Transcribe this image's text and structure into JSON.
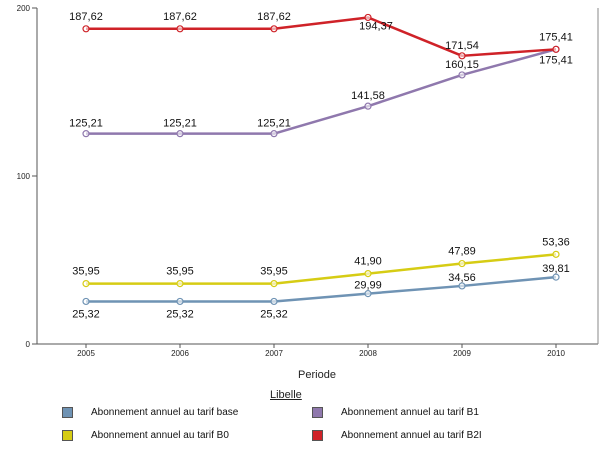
{
  "chart_data": {
    "type": "line",
    "x": [
      "2005",
      "2006",
      "2007",
      "2008",
      "2009",
      "2010"
    ],
    "xlabel": "Periode",
    "ylabel": "",
    "ylim": [
      0,
      200
    ],
    "yticks": [
      "0",
      "100",
      "200"
    ],
    "grid": false,
    "legend_title": "Libelle",
    "legend_position": "bottom",
    "series": [
      {
        "name": "Abonnement annuel au tarif base",
        "color": "#6f93b4",
        "values": [
          25.32,
          25.32,
          25.32,
          29.99,
          34.56,
          39.81
        ],
        "labels": [
          "25,32",
          "25,32",
          "25,32",
          "29,99",
          "34,56",
          "39,81"
        ]
      },
      {
        "name": "Abonnement annuel au tarif B1",
        "color": "#8f78ad",
        "values": [
          125.21,
          125.21,
          125.21,
          141.58,
          160.15,
          175.41
        ],
        "labels": [
          "125,21",
          "125,21",
          "125,21",
          "141,58",
          "160,15",
          "175,41"
        ]
      },
      {
        "name": "Abonnement annuel au tarif B0",
        "color": "#d6cc14",
        "values": [
          35.95,
          35.95,
          35.95,
          41.9,
          47.89,
          53.36
        ],
        "labels": [
          "35,95",
          "35,95",
          "35,95",
          "41,90",
          "47,89",
          "53,36"
        ]
      },
      {
        "name": "Abonnement annuel au tarif B2I",
        "color": "#cf2228",
        "values": [
          187.62,
          187.62,
          187.62,
          194.37,
          171.54,
          175.41
        ],
        "labels": [
          "187,62",
          "187,62",
          "187,62",
          "194,37",
          "171,54",
          "175,41"
        ]
      }
    ]
  }
}
